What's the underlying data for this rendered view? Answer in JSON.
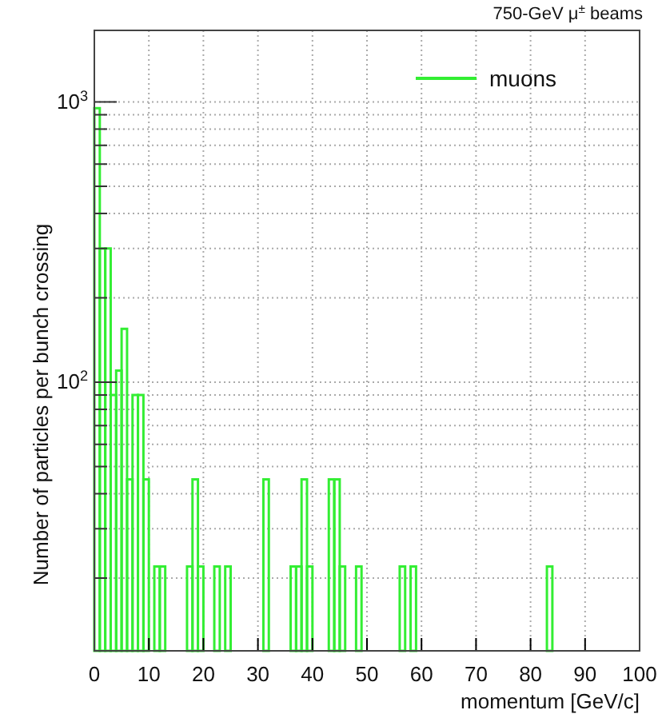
{
  "chart_data": {
    "type": "histogram",
    "title": "750-GeV μ$^{±}$ beams",
    "xlabel": "momentum [GeV/c]",
    "ylabel": "Number of particles per bunch crossing",
    "bins": [
      0,
      1,
      2,
      3,
      4,
      5,
      6,
      7,
      8,
      9,
      10,
      11,
      12,
      13,
      14,
      15,
      16,
      17,
      18,
      19,
      20,
      21,
      22,
      23,
      24,
      25,
      26,
      27,
      28,
      29,
      30,
      31,
      32,
      33,
      34,
      35,
      36,
      37,
      38,
      39,
      40,
      41,
      42,
      43,
      44,
      45,
      46,
      47,
      48,
      49,
      50,
      51,
      52,
      53,
      54,
      55,
      56,
      57,
      58,
      59,
      60,
      61,
      62,
      63,
      64,
      65,
      66,
      67,
      68,
      69,
      70,
      71,
      72,
      73,
      74,
      75,
      76,
      77,
      78,
      79,
      80,
      81,
      82,
      83,
      84,
      85,
      86,
      87,
      88,
      89,
      90,
      91,
      92,
      93,
      94,
      95,
      96,
      97,
      98,
      99,
      100
    ],
    "series": [
      {
        "name": "muons",
        "color": "#33ee33",
        "values": [
          950,
          300,
          300,
          90,
          110,
          155,
          45,
          90,
          90,
          45,
          null,
          22,
          22,
          null,
          null,
          null,
          null,
          22,
          45,
          22,
          null,
          null,
          22,
          null,
          22,
          null,
          null,
          null,
          null,
          null,
          null,
          45,
          null,
          null,
          null,
          null,
          22,
          22,
          45,
          22,
          null,
          null,
          null,
          45,
          45,
          22,
          null,
          null,
          22,
          null,
          null,
          null,
          null,
          null,
          null,
          null,
          22,
          null,
          22,
          null,
          null,
          null,
          null,
          null,
          null,
          null,
          null,
          null,
          null,
          null,
          null,
          null,
          null,
          null,
          null,
          null,
          null,
          null,
          null,
          null,
          null,
          null,
          null,
          22,
          null,
          null,
          null,
          null,
          null,
          null,
          null,
          null,
          null,
          null,
          null,
          null,
          null,
          null,
          null,
          null
        ]
      }
    ],
    "xlim": [
      0,
      100
    ],
    "xticks": [
      0,
      10,
      20,
      30,
      40,
      50,
      60,
      70,
      80,
      90,
      100
    ],
    "ylim": [
      11,
      1800
    ],
    "log": true,
    "yticks": [
      {
        "value": 20,
        "label": null
      },
      {
        "value": 30,
        "label": null
      },
      {
        "value": 40,
        "label": null
      },
      {
        "value": 50,
        "label": null
      },
      {
        "value": 60,
        "label": null
      },
      {
        "value": 70,
        "label": null
      },
      {
        "value": 80,
        "label": null
      },
      {
        "value": 90,
        "label": null
      },
      {
        "value": 100,
        "label": "10$^{2}$"
      },
      {
        "value": 200,
        "label": null
      },
      {
        "value": 300,
        "label": null
      },
      {
        "value": 400,
        "label": null
      },
      {
        "value": 500,
        "label": null
      },
      {
        "value": 600,
        "label": null
      },
      {
        "value": 700,
        "label": null
      },
      {
        "value": 800,
        "label": null
      },
      {
        "value": 900,
        "label": null
      },
      {
        "value": 1000,
        "label": "10$^{3}$"
      }
    ],
    "grid": true,
    "legend": "top right"
  }
}
